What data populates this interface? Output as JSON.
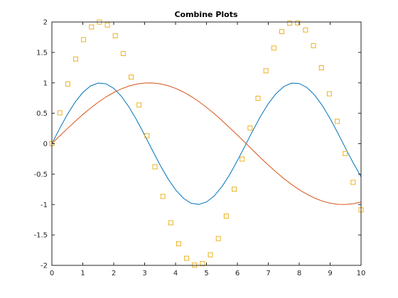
{
  "chart_data": {
    "type": "line",
    "title": "Combine Plots",
    "xlabel": "",
    "ylabel": "",
    "xlim": [
      0,
      10
    ],
    "ylim": [
      -2,
      2
    ],
    "xticks": [
      0,
      1,
      2,
      3,
      4,
      5,
      6,
      7,
      8,
      9,
      10
    ],
    "xtick_labels": [
      "0",
      "1",
      "2",
      "3",
      "4",
      "5",
      "6",
      "7",
      "8",
      "9",
      "10"
    ],
    "yticks": [
      -2,
      -1.5,
      -1,
      -0.5,
      0,
      0.5,
      1,
      1.5,
      2
    ],
    "ytick_labels": [
      "-2",
      "-1.5",
      "-1",
      "-0.5",
      "0",
      "0.5",
      "1",
      "1.5",
      "2"
    ],
    "grid": false,
    "legend": "none",
    "series": [
      {
        "style": "line",
        "color": "#0072bd",
        "x": [
          0,
          0.25,
          0.5,
          0.75,
          1,
          1.25,
          1.5,
          1.75,
          2,
          2.25,
          2.5,
          2.75,
          3,
          3.25,
          3.5,
          3.75,
          4,
          4.25,
          4.5,
          4.75,
          5,
          5.25,
          5.5,
          5.75,
          6,
          6.25,
          6.5,
          6.75,
          7,
          7.25,
          7.5,
          7.75,
          8,
          8.25,
          8.5,
          8.75,
          9,
          9.25,
          9.5,
          9.75,
          10
        ],
        "y": [
          0,
          0.247,
          0.479,
          0.682,
          0.841,
          0.949,
          0.997,
          0.984,
          0.909,
          0.778,
          0.598,
          0.382,
          0.141,
          -0.108,
          -0.351,
          -0.572,
          -0.757,
          -0.895,
          -0.978,
          -0.999,
          -0.959,
          -0.859,
          -0.706,
          -0.509,
          -0.279,
          -0.033,
          0.215,
          0.451,
          0.657,
          0.823,
          0.938,
          0.995,
          0.989,
          0.923,
          0.798,
          0.625,
          0.412,
          0.174,
          -0.075,
          -0.319,
          -0.544
        ]
      },
      {
        "style": "line",
        "color": "#d95319",
        "x": [
          0,
          0.25,
          0.5,
          0.75,
          1,
          1.25,
          1.5,
          1.75,
          2,
          2.25,
          2.5,
          2.75,
          3,
          3.25,
          3.5,
          3.75,
          4,
          4.25,
          4.5,
          4.75,
          5,
          5.25,
          5.5,
          5.75,
          6,
          6.25,
          6.5,
          6.75,
          7,
          7.25,
          7.5,
          7.75,
          8,
          8.25,
          8.5,
          8.75,
          9,
          9.25,
          9.5,
          9.75,
          10
        ],
        "y": [
          0,
          0.125,
          0.247,
          0.366,
          0.479,
          0.585,
          0.682,
          0.768,
          0.841,
          0.902,
          0.949,
          0.981,
          0.997,
          0.999,
          0.984,
          0.955,
          0.909,
          0.85,
          0.778,
          0.694,
          0.598,
          0.494,
          0.382,
          0.263,
          0.141,
          0.017,
          -0.108,
          -0.232,
          -0.351,
          -0.465,
          -0.572,
          -0.67,
          -0.757,
          -0.832,
          -0.895,
          -0.944,
          -0.978,
          -0.997,
          -0.999,
          -0.987,
          -0.959
        ]
      },
      {
        "style": "markers",
        "marker": "square",
        "color": "#edb120",
        "x": [
          0,
          0.2564,
          0.5128,
          0.7692,
          1.0256,
          1.2821,
          1.5385,
          1.7949,
          2.0513,
          2.3077,
          2.5641,
          2.8205,
          3.0769,
          3.3333,
          3.5897,
          3.8462,
          4.1026,
          4.359,
          4.6154,
          4.8718,
          5.1282,
          5.3846,
          5.641,
          5.8974,
          6.1538,
          6.4103,
          6.6667,
          6.9231,
          7.1795,
          7.4359,
          7.6923,
          7.9487,
          8.2051,
          8.4615,
          8.7179,
          8.9744,
          9.2308,
          9.4872,
          9.7436,
          10
        ],
        "y": [
          0,
          0.507,
          0.981,
          1.391,
          1.71,
          1.918,
          1.999,
          1.95,
          1.774,
          1.481,
          1.095,
          0.636,
          0.131,
          -0.38,
          -0.867,
          -1.3,
          -1.646,
          -1.884,
          -1.995,
          -1.972,
          -1.827,
          -1.559,
          -1.19,
          -0.748,
          -0.252,
          0.258,
          0.747,
          1.198,
          1.572,
          1.842,
          1.981,
          1.985,
          1.869,
          1.612,
          1.247,
          0.82,
          0.367,
          -0.162,
          -0.635,
          -1.088
        ]
      }
    ]
  }
}
